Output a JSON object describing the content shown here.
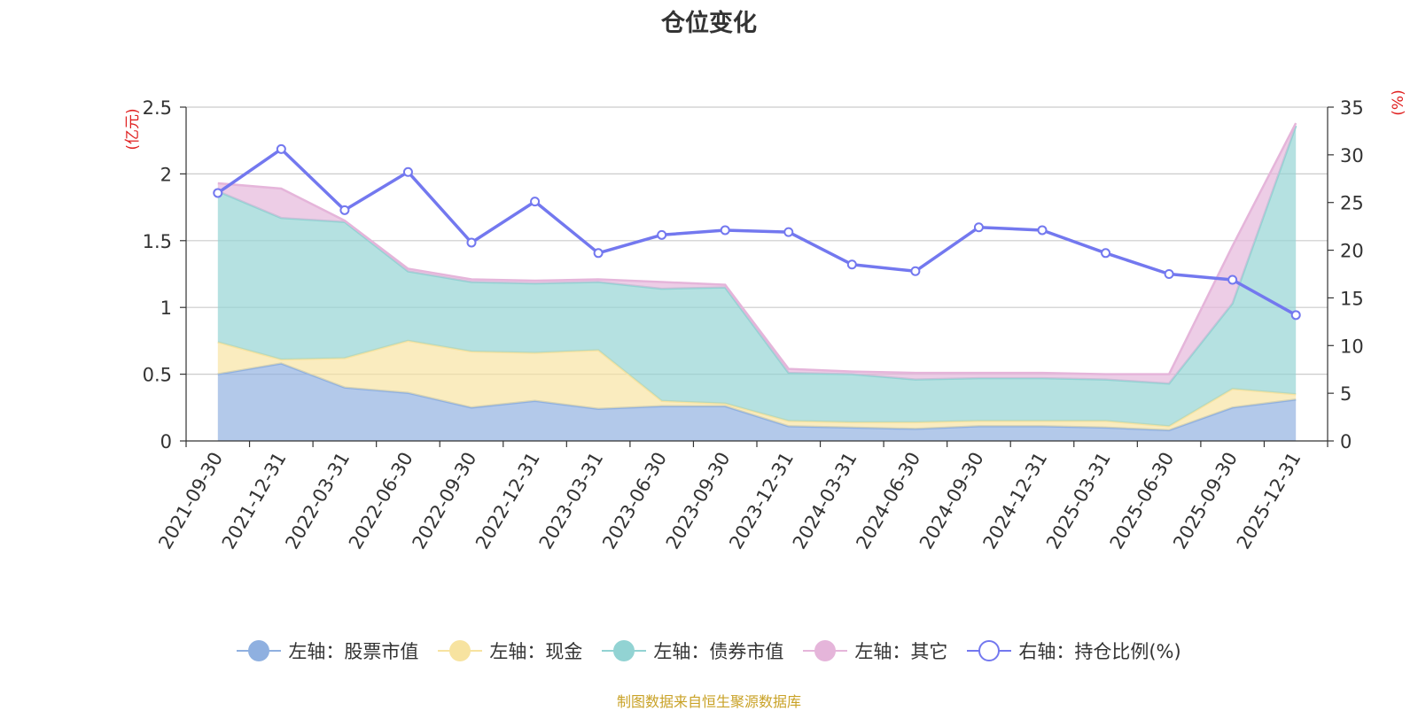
{
  "title": "仓位变化",
  "source_note": "制图数据来自恒生聚源数据库",
  "colors": {
    "stock": "#8fb0e0",
    "cash": "#f7e3a0",
    "bond": "#92d3d3",
    "other": "#e5b5da",
    "ratio": "#7378ef",
    "axis_unit": "#e02020"
  },
  "chart_data": {
    "type": "area",
    "title": "仓位变化",
    "categories": [
      "2021-09-30",
      "2021-12-31",
      "2022-03-31",
      "2022-06-30",
      "2022-09-30",
      "2022-12-31",
      "2023-03-31",
      "2023-06-30",
      "2023-09-30",
      "2023-12-31",
      "2024-03-31",
      "2024-06-30",
      "2024-09-30",
      "2024-12-31",
      "2025-03-31",
      "2025-06-30",
      "2025-09-30",
      "2025-12-31"
    ],
    "left_axis": {
      "unit": "(亿元)",
      "ylim": [
        0,
        2.5
      ],
      "ticks": [
        "0",
        "0.5",
        "1",
        "1.5",
        "2",
        "2.5"
      ],
      "tick_values": [
        0,
        0.5,
        1,
        1.5,
        2,
        2.5
      ]
    },
    "right_axis": {
      "unit": "(%)",
      "ylim": [
        0,
        35
      ],
      "ticks": [
        "0",
        "5",
        "10",
        "15",
        "20",
        "25",
        "30",
        "35"
      ],
      "tick_values": [
        0,
        5,
        10,
        15,
        20,
        25,
        30,
        35
      ]
    },
    "grid": true,
    "legend_position": "bottom",
    "series": [
      {
        "name": "左轴：股票市值",
        "axis": "left",
        "kind": "stacked-area",
        "color_key": "stock",
        "values": [
          0.5,
          0.58,
          0.4,
          0.36,
          0.25,
          0.3,
          0.24,
          0.26,
          0.26,
          0.11,
          0.1,
          0.09,
          0.11,
          0.11,
          0.1,
          0.08,
          0.25,
          0.31
        ]
      },
      {
        "name": "左轴：现金",
        "axis": "left",
        "kind": "stacked-area",
        "color_key": "cash",
        "values": [
          0.24,
          0.03,
          0.22,
          0.39,
          0.42,
          0.36,
          0.44,
          0.04,
          0.02,
          0.04,
          0.04,
          0.05,
          0.04,
          0.04,
          0.05,
          0.03,
          0.14,
          0.04
        ]
      },
      {
        "name": "左轴：债券市值",
        "axis": "left",
        "kind": "stacked-area",
        "color_key": "bond",
        "values": [
          1.13,
          1.06,
          1.02,
          0.52,
          0.52,
          0.52,
          0.51,
          0.84,
          0.87,
          0.36,
          0.36,
          0.32,
          0.32,
          0.32,
          0.31,
          0.32,
          0.64,
          2.01
        ]
      },
      {
        "name": "左轴：其它",
        "axis": "left",
        "kind": "stacked-area",
        "color_key": "other",
        "values": [
          0.06,
          0.22,
          0.01,
          0.02,
          0.02,
          0.02,
          0.02,
          0.05,
          0.02,
          0.03,
          0.02,
          0.05,
          0.04,
          0.04,
          0.04,
          0.07,
          0.43,
          0.02
        ]
      },
      {
        "name": "右轴：持仓比例(%)",
        "axis": "right",
        "kind": "line",
        "color_key": "ratio",
        "values": [
          26.0,
          30.6,
          24.2,
          28.2,
          20.8,
          25.1,
          19.7,
          21.6,
          22.1,
          21.9,
          18.5,
          17.8,
          22.4,
          22.1,
          19.7,
          17.5,
          16.9,
          13.2
        ]
      }
    ]
  }
}
